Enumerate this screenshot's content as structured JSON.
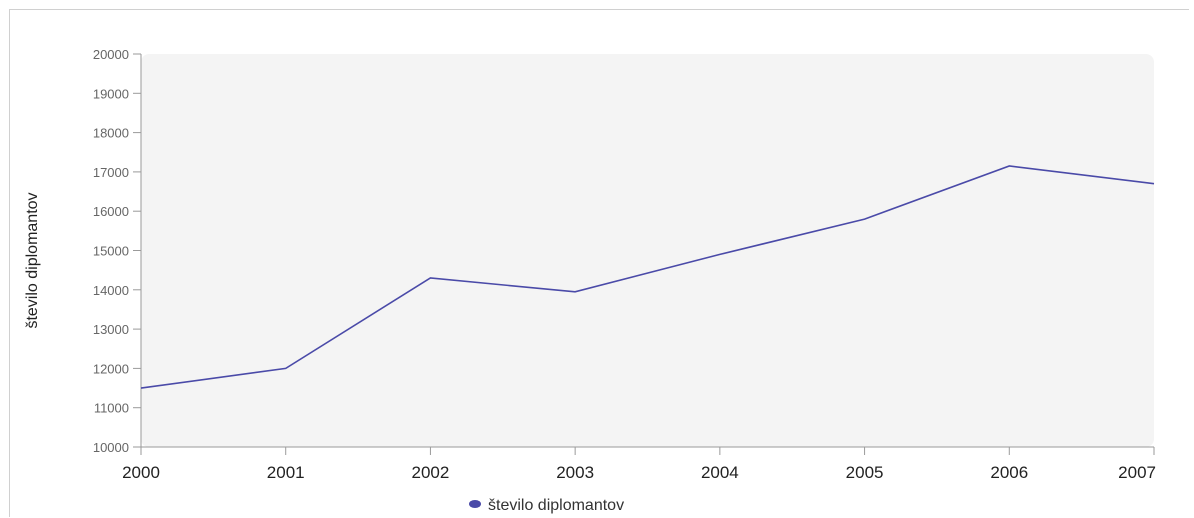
{
  "chart_data": {
    "type": "line",
    "title": "",
    "xlabel": "",
    "ylabel": "število diplomantov",
    "x": [
      "2000",
      "2001",
      "2002",
      "2003",
      "2004",
      "2005",
      "2006",
      "2007"
    ],
    "series": [
      {
        "name": "število diplomantov",
        "color": "#4a4aa8",
        "values": [
          11500,
          12000,
          14300,
          13950,
          14900,
          15800,
          17150,
          16700
        ]
      }
    ],
    "ylim": [
      10000,
      20000
    ],
    "yticks": [
      "10000",
      "11000",
      "12000",
      "13000",
      "14000",
      "15000",
      "16000",
      "17000",
      "18000",
      "19000",
      "20000"
    ],
    "grid": false,
    "plot_background": "#f4f4f4",
    "legend_position": "bottom-center"
  }
}
